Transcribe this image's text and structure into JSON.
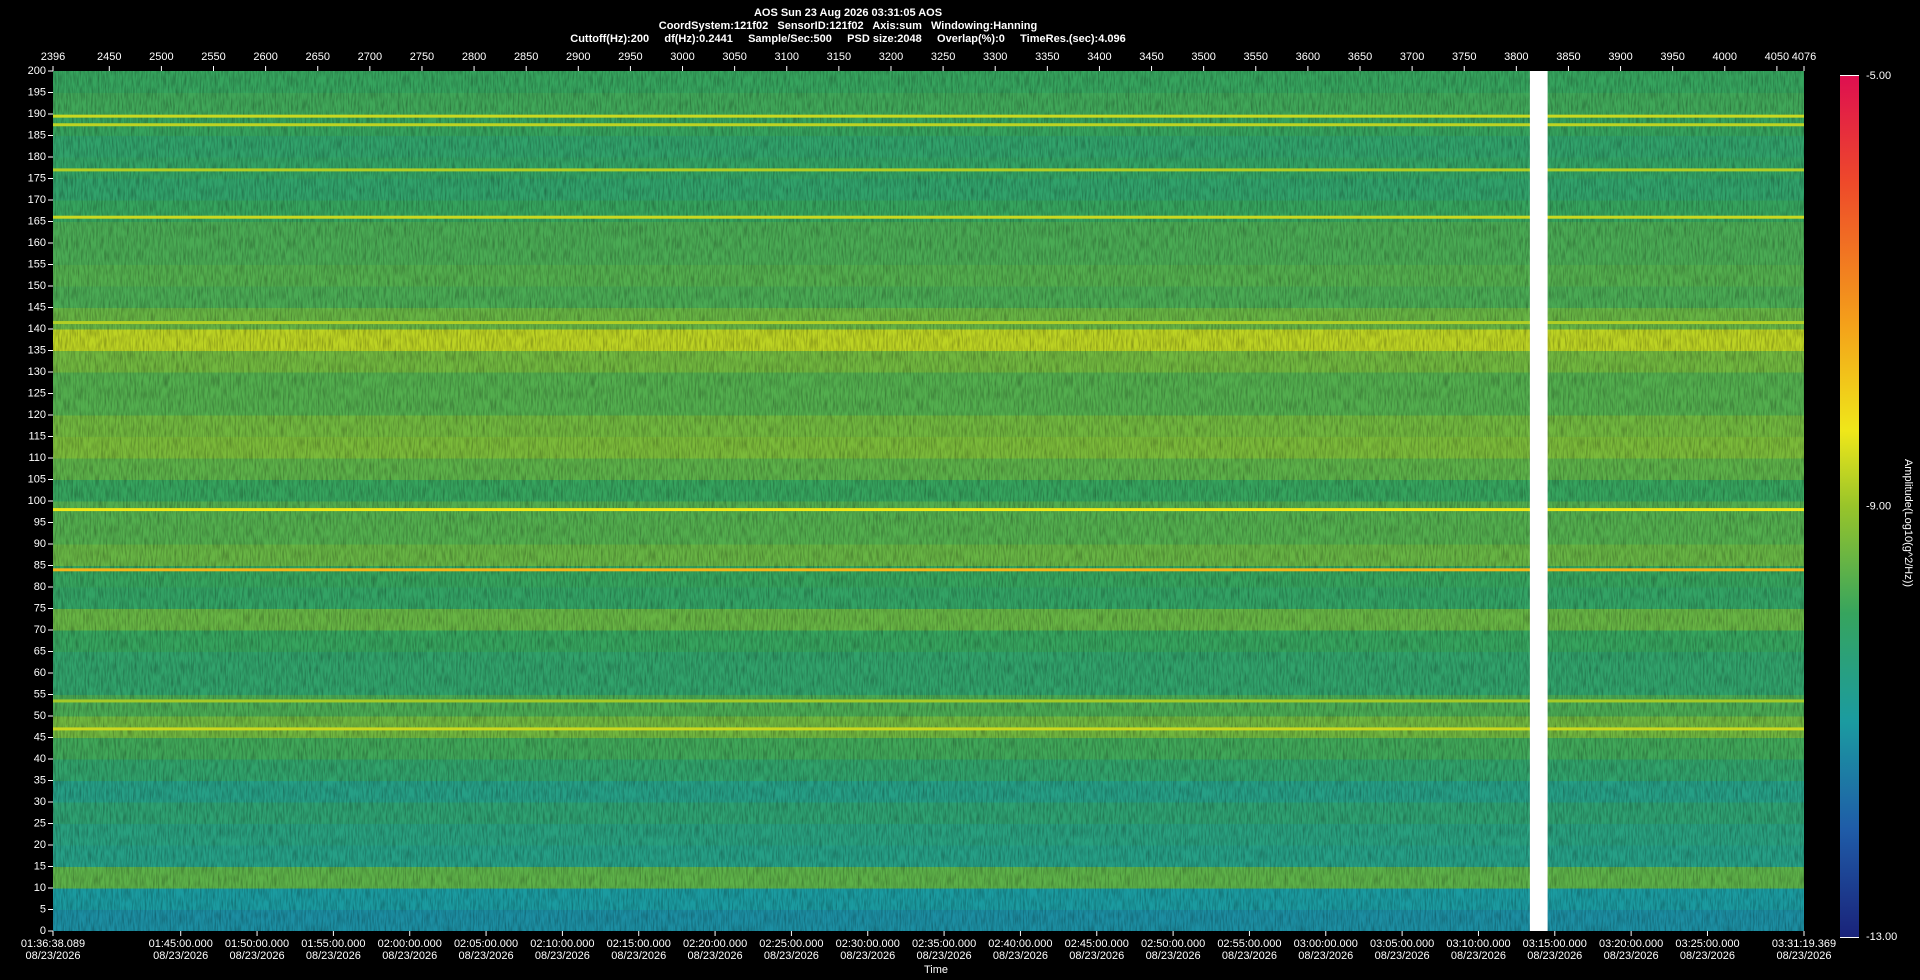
{
  "chart_data": {
    "type": "heatmap",
    "title": "AOS  Sun 23 Aug 2026 03:31:05  AOS",
    "subtitle": "CoordSystem:121f02   SensorID:121f02   Axis:sum   Windowing:Hanning",
    "parameters": "Cuttoff(Hz):200     df(Hz):0.2441     Sample/Sec:500     PSD size:2048     Overlap(%):0     TimeRes.(sec):4.096",
    "x_label": "Time",
    "colorbar_label": "Amplitude(Log10(g^2/Hz))",
    "xlim": [
      5798.089,
      12679.369
    ],
    "xticks": [
      {
        "value": 5798.089,
        "label": "01:36:38.089",
        "date": "08/23/2026"
      },
      {
        "value": 6300,
        "label": "01:45:00.000",
        "date": "08/23/2026"
      },
      {
        "value": 6600,
        "label": "01:50:00.000",
        "date": "08/23/2026"
      },
      {
        "value": 6900,
        "label": "01:55:00.000",
        "date": "08/23/2026"
      },
      {
        "value": 7200,
        "label": "02:00:00.000",
        "date": "08/23/2026"
      },
      {
        "value": 7500,
        "label": "02:05:00.000",
        "date": "08/23/2026"
      },
      {
        "value": 7800,
        "label": "02:10:00.000",
        "date": "08/23/2026"
      },
      {
        "value": 8100,
        "label": "02:15:00.000",
        "date": "08/23/2026"
      },
      {
        "value": 8400,
        "label": "02:20:00.000",
        "date": "08/23/2026"
      },
      {
        "value": 8700,
        "label": "02:25:00.000",
        "date": "08/23/2026"
      },
      {
        "value": 9000,
        "label": "02:30:00.000",
        "date": "08/23/2026"
      },
      {
        "value": 9300,
        "label": "02:35:00.000",
        "date": "08/23/2026"
      },
      {
        "value": 9600,
        "label": "02:40:00.000",
        "date": "08/23/2026"
      },
      {
        "value": 9900,
        "label": "02:45:00.000",
        "date": "08/23/2026"
      },
      {
        "value": 10200,
        "label": "02:50:00.000",
        "date": "08/23/2026"
      },
      {
        "value": 10500,
        "label": "02:55:00.000",
        "date": "08/23/2026"
      },
      {
        "value": 10800,
        "label": "03:00:00.000",
        "date": "08/23/2026"
      },
      {
        "value": 11100,
        "label": "03:05:00.000",
        "date": "08/23/2026"
      },
      {
        "value": 11400,
        "label": "03:10:00.000",
        "date": "08/23/2026"
      },
      {
        "value": 11700,
        "label": "03:15:00.000",
        "date": "08/23/2026"
      },
      {
        "value": 12000,
        "label": "03:20:00.000",
        "date": "08/23/2026"
      },
      {
        "value": 12300,
        "label": "03:25:00.000",
        "date": "08/23/2026"
      },
      {
        "value": 12679.369,
        "label": "03:31:19.369",
        "date": "08/23/2026"
      }
    ],
    "x2lim": [
      2396,
      4076
    ],
    "x2ticks": [
      2396,
      2450,
      2500,
      2550,
      2600,
      2650,
      2700,
      2750,
      2800,
      2850,
      2900,
      2950,
      3000,
      3050,
      3100,
      3150,
      3200,
      3250,
      3300,
      3350,
      3400,
      3450,
      3500,
      3550,
      3600,
      3650,
      3700,
      3750,
      3800,
      3850,
      3900,
      3950,
      4000,
      4050,
      4076
    ],
    "ylim": [
      0,
      200
    ],
    "yticks": [
      0,
      5,
      10,
      15,
      20,
      25,
      30,
      35,
      40,
      45,
      50,
      55,
      60,
      65,
      70,
      75,
      80,
      85,
      90,
      95,
      100,
      105,
      110,
      115,
      120,
      125,
      130,
      135,
      140,
      145,
      150,
      155,
      160,
      165,
      170,
      175,
      180,
      185,
      190,
      195,
      200
    ],
    "bin_edges": [
      0,
      5,
      10,
      15,
      20,
      25,
      30,
      35,
      40,
      45,
      50,
      55,
      60,
      65,
      70,
      75,
      80,
      85,
      90,
      95,
      100,
      105,
      110,
      115,
      120,
      125,
      130,
      135,
      140,
      145,
      150,
      155,
      160,
      165,
      170,
      175,
      180,
      185,
      190,
      195,
      200
    ],
    "values": [
      -11.2,
      -11.0,
      -9.6,
      -10.6,
      -10.5,
      -10.3,
      -10.6,
      -10.2,
      -9.9,
      -9.4,
      -9.8,
      -10.2,
      -10.2,
      -10.0,
      -9.5,
      -10.1,
      -10.0,
      -9.5,
      -9.7,
      -9.7,
      -10.0,
      -9.6,
      -9.3,
      -9.4,
      -9.7,
      -9.7,
      -9.4,
      -8.7,
      -9.5,
      -9.8,
      -9.7,
      -9.8,
      -9.8,
      -10.0,
      -10.2,
      -10.1,
      -10.2,
      -10.0,
      -9.9,
      -10.0
    ],
    "lines": [
      {
        "freq": 189.5,
        "amp": -8.6
      },
      {
        "freq": 187.5,
        "amp": -8.7
      },
      {
        "freq": 177,
        "amp": -8.8
      },
      {
        "freq": 166,
        "amp": -8.6
      },
      {
        "freq": 141.5,
        "amp": -8.8
      },
      {
        "freq": 98,
        "amp": -8.3
      },
      {
        "freq": 84,
        "amp": -7.6
      },
      {
        "freq": 53.5,
        "amp": -8.9
      },
      {
        "freq": 47,
        "amp": -8.6
      }
    ],
    "gap": [
      3813,
      3830
    ],
    "gap_color": "#ffffff",
    "clim": [
      -13,
      -5
    ],
    "cticks": [
      {
        "value": -5,
        "label": "-5.00"
      },
      {
        "value": -9,
        "label": "-9.00"
      },
      {
        "value": -13,
        "label": "-13.00"
      }
    ],
    "colormap": [
      {
        "value": -13,
        "color": "#1a237a"
      },
      {
        "value": -12,
        "color": "#1f5ca8"
      },
      {
        "value": -11,
        "color": "#1b9ba0"
      },
      {
        "value": -10,
        "color": "#36a45e"
      },
      {
        "value": -9,
        "color": "#98c42a"
      },
      {
        "value": -8.3,
        "color": "#efe71a"
      },
      {
        "value": -7.3,
        "color": "#f4a01a"
      },
      {
        "value": -6,
        "color": "#ee4a2a"
      },
      {
        "value": -5,
        "color": "#de0f50"
      }
    ]
  }
}
